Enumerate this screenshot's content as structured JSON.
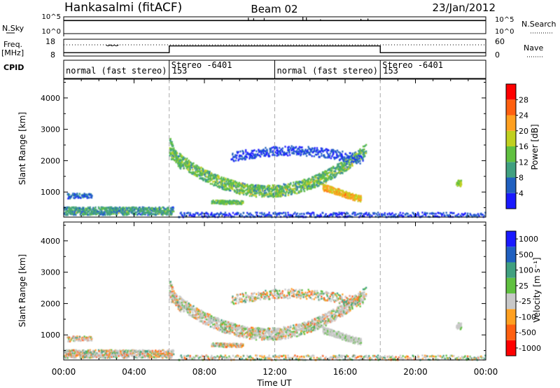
{
  "header": {
    "station": "Hankasalmi (fitACF)",
    "beam": "Beam 02",
    "date": "23/Jan/2012"
  },
  "chart_data": [
    {
      "type": "line",
      "panel": "noise",
      "left_label": "N.Sky",
      "right_label": "N.Search",
      "left_ticks": [
        "10^5",
        "10^0"
      ],
      "right_ticks": [
        "10^5",
        "10^0"
      ],
      "baseline": 0.78,
      "spikes": [
        {
          "t": 10.5,
          "v": 0.95
        },
        {
          "t": 10.8,
          "v": 0.92
        },
        {
          "t": 11.4,
          "v": 0.93
        },
        {
          "t": 13.6,
          "v": 1.0
        },
        {
          "t": 13.8,
          "v": 0.96
        },
        {
          "t": 14.6,
          "v": 0.85
        },
        {
          "t": 16.9,
          "v": 0.88
        },
        {
          "t": 17.3,
          "v": 0.9
        }
      ]
    },
    {
      "type": "line",
      "panel": "frequency",
      "left_label_lines": [
        "Freq.",
        "[MHz]"
      ],
      "right_label": "Nave",
      "left_ticks": [
        "18",
        "8"
      ],
      "right_ticks": [
        "60",
        "0"
      ],
      "cpid_label": "CPID",
      "freq_steps": [
        {
          "t0": 0,
          "t1": 6,
          "v": 10
        },
        {
          "t0": 6,
          "t1": 18,
          "v": 14
        },
        {
          "t0": 18,
          "t1": 24,
          "v": 10
        }
      ],
      "nave_level": 40
    },
    {
      "type": "table",
      "panel": "cpid",
      "segments": [
        {
          "t": 0,
          "label": "normal (fast stereo) 153"
        },
        {
          "t": 6,
          "label": "Stereo -6401"
        },
        {
          "t": 12,
          "label": "normal (fast stereo) 153"
        },
        {
          "t": 18,
          "label": "Stereo -6401"
        }
      ]
    },
    {
      "type": "heatmap",
      "panel": "power",
      "ylabel": "Slant Range [km]",
      "yticks": [
        "1000",
        "2000",
        "3000",
        "4000"
      ],
      "ylim": [
        200,
        4600
      ],
      "colorbar_label": "Power [dB]",
      "colorbar_ticks": [
        "4",
        "8",
        "12",
        "16",
        "20",
        "24",
        "28"
      ],
      "colorbar_colors": [
        "#1a1aff",
        "#2060c0",
        "#40a080",
        "#60c040",
        "#c0d020",
        "#ffa020",
        "#ff6010",
        "#ff0000"
      ]
    },
    {
      "type": "heatmap",
      "panel": "velocity",
      "ylabel": "Slant Range [km]",
      "yticks": [
        "1000",
        "2000",
        "3000",
        "4000"
      ],
      "ylim": [
        200,
        4600
      ],
      "colorbar_label": "Velocity [m s⁻¹]",
      "colorbar_ticks": [
        "1000",
        "500",
        "100",
        "25",
        "-25",
        "-100",
        "-500",
        "-1000"
      ],
      "colorbar_colors": [
        "#1a1aff",
        "#2060c0",
        "#40a080",
        "#60c040",
        "#c8c8c8",
        "#ffa020",
        "#ff6010",
        "#ff0000"
      ]
    }
  ],
  "xaxis": {
    "label": "Time UT",
    "ticks": [
      "00:00",
      "04:00",
      "08:00",
      "12:00",
      "16:00",
      "20:00",
      "00:00"
    ],
    "xlim": [
      0,
      24
    ]
  }
}
